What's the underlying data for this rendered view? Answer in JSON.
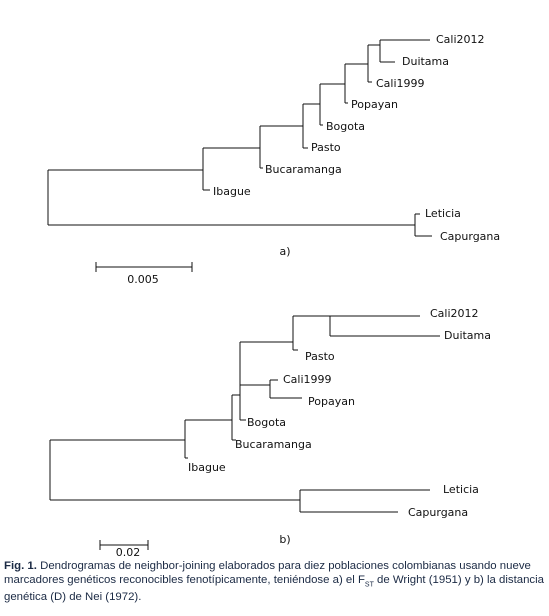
{
  "figure": {
    "panel_a": {
      "label": "a)",
      "taxa": [
        "Cali2012",
        "Duitama",
        "Cali1999",
        "Popayan",
        "Bogota",
        "Pasto",
        "Bucaramanga",
        "Ibague",
        "Leticia",
        "Capurgana"
      ],
      "scale_label": "0.005"
    },
    "panel_b": {
      "label": "b)",
      "taxa": [
        "Cali2012",
        "Duitama",
        "Pasto",
        "Cali1999",
        "Popayan",
        "Bogota",
        "Bucaramanga",
        "Ibague",
        "Leticia",
        "Capurgana"
      ],
      "scale_label": "0.02"
    },
    "caption": {
      "label": "Fig. 1.",
      "text_1": " Dendrogramas de neighbor-joining elaborados para diez poblaciones colombianas usando nueve marcadores genéticos reconocibles fenotípicamente, teniéndose a) el F",
      "subscript": "ST",
      "text_2": " de Wright (1951) y b) la distancia genética (D) de Nei (1972)."
    }
  }
}
